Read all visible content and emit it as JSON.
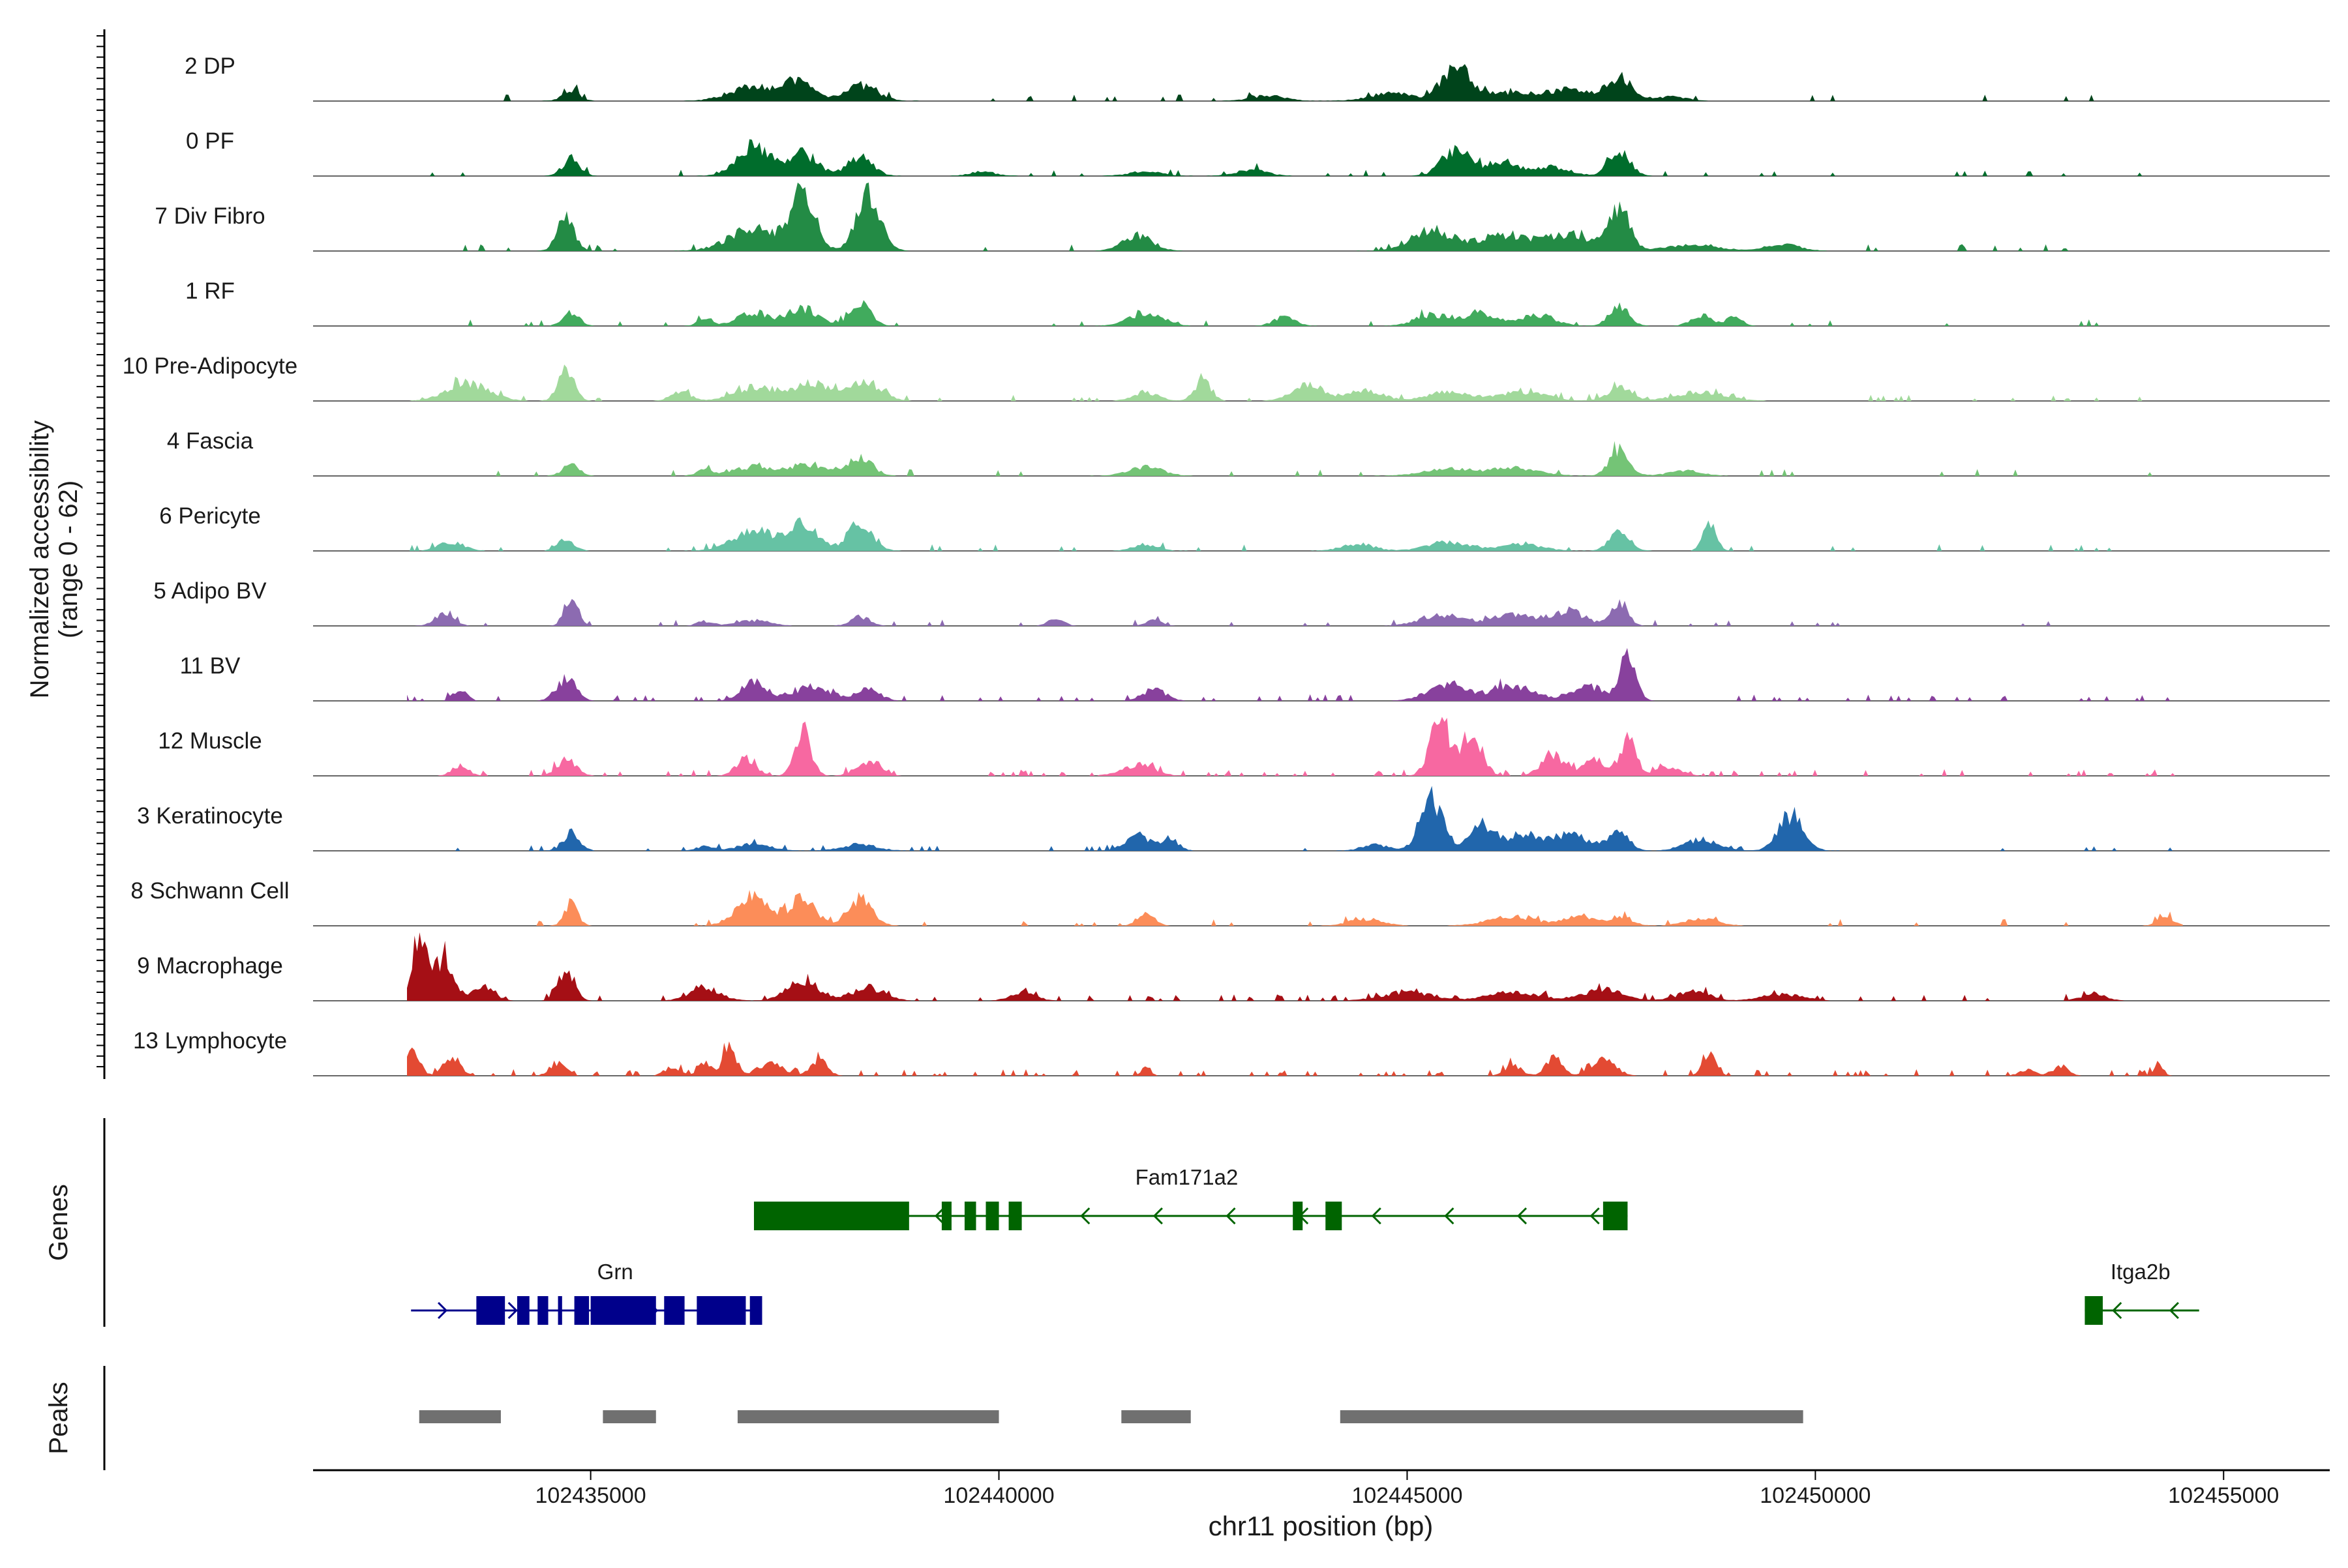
{
  "chart_data": {
    "type": "area",
    "title": "",
    "ylabel_line1": "Normalized accessibility",
    "ylabel_line2": "(range 0 - 62)",
    "xlabel": "chr11 position (bp)",
    "xlim": [
      102431600,
      102456300
    ],
    "ylim": [
      0,
      62
    ],
    "x_ticks": [
      {
        "value": 102435000,
        "label": "102435000"
      },
      {
        "value": 102440000,
        "label": "102440000"
      },
      {
        "value": 102445000,
        "label": "102445000"
      },
      {
        "value": 102450000,
        "label": "102450000"
      },
      {
        "value": 102455000,
        "label": "102455000"
      }
    ],
    "range": [
      102432750,
      102454500
    ],
    "series": [
      {
        "name": "2 DP",
        "color": "#00441B",
        "floor": 0.05,
        "noise": 0.04,
        "peaks": [
          [
            102434760,
            10,
            100
          ],
          [
            102437000,
            14,
            280
          ],
          [
            102437550,
            16,
            180
          ],
          [
            102438300,
            14,
            200
          ],
          [
            102443300,
            5,
            200
          ],
          [
            102444800,
            7,
            250
          ],
          [
            102445600,
            30,
            180
          ],
          [
            102446200,
            7,
            300
          ],
          [
            102447000,
            10,
            300
          ],
          [
            102447600,
            20,
            150
          ],
          [
            102448200,
            4,
            200
          ]
        ]
      },
      {
        "name": "0 PF",
        "color": "#006D2C",
        "floor": 0.05,
        "noise": 0.05,
        "peaks": [
          [
            102434760,
            16,
            100
          ],
          [
            102437000,
            28,
            200
          ],
          [
            102437600,
            20,
            180
          ],
          [
            102438300,
            18,
            150
          ],
          [
            102439800,
            4,
            150
          ],
          [
            102441800,
            4,
            200
          ],
          [
            102443100,
            6,
            180
          ],
          [
            102445600,
            24,
            170
          ],
          [
            102446200,
            12,
            200
          ],
          [
            102446800,
            8,
            200
          ],
          [
            102447600,
            22,
            130
          ]
        ]
      },
      {
        "name": "7 Div Fibro",
        "color": "#238B45",
        "floor": 0.05,
        "noise": 0.05,
        "peaks": [
          [
            102434700,
            30,
            100
          ],
          [
            102437000,
            20,
            300
          ],
          [
            102437600,
            50,
            150
          ],
          [
            102438400,
            48,
            150
          ],
          [
            102441700,
            14,
            180
          ],
          [
            102445300,
            18,
            250
          ],
          [
            102446200,
            14,
            350
          ],
          [
            102447000,
            14,
            250
          ],
          [
            102447600,
            36,
            130
          ],
          [
            102448500,
            6,
            300
          ],
          [
            102449600,
            6,
            200
          ]
        ]
      },
      {
        "name": "1 RF",
        "color": "#41AB5D",
        "floor": 0.04,
        "noise": 0.04,
        "peaks": [
          [
            102434760,
            12,
            100
          ],
          [
            102436400,
            8,
            80
          ],
          [
            102437000,
            12,
            200
          ],
          [
            102437600,
            16,
            180
          ],
          [
            102438300,
            20,
            130
          ],
          [
            102441800,
            12,
            200
          ],
          [
            102443500,
            8,
            130
          ],
          [
            102445300,
            10,
            200
          ],
          [
            102445900,
            12,
            200
          ],
          [
            102446600,
            10,
            200
          ],
          [
            102447600,
            18,
            120
          ],
          [
            102448600,
            10,
            120
          ],
          [
            102449000,
            8,
            100
          ]
        ]
      },
      {
        "name": "10 Pre-Adipocyte",
        "color": "#A1D99B",
        "floor": 0.03,
        "noise": 0.1,
        "peaks": [
          [
            102433500,
            16,
            250
          ],
          [
            102434700,
            26,
            100
          ],
          [
            102436100,
            8,
            120
          ],
          [
            102437000,
            12,
            250
          ],
          [
            102437700,
            16,
            250
          ],
          [
            102438400,
            16,
            180
          ],
          [
            102441800,
            8,
            150
          ],
          [
            102442500,
            18,
            100
          ],
          [
            102443800,
            14,
            200
          ],
          [
            102444500,
            10,
            200
          ],
          [
            102445500,
            8,
            250
          ],
          [
            102446400,
            8,
            300
          ],
          [
            102447600,
            12,
            150
          ],
          [
            102448600,
            8,
            300
          ]
        ]
      },
      {
        "name": "4 Fascia",
        "color": "#74C476",
        "floor": 0.05,
        "noise": 0.05,
        "peaks": [
          [
            102434760,
            10,
            100
          ],
          [
            102436400,
            5,
            100
          ],
          [
            102437000,
            8,
            250
          ],
          [
            102437700,
            10,
            250
          ],
          [
            102438300,
            16,
            150
          ],
          [
            102441800,
            8,
            200
          ],
          [
            102445500,
            6,
            300
          ],
          [
            102446300,
            7,
            300
          ],
          [
            102447600,
            24,
            120
          ],
          [
            102448400,
            5,
            200
          ]
        ]
      },
      {
        "name": "6 Pericyte",
        "color": "#66C2A4",
        "floor": 0.05,
        "noise": 0.05,
        "peaks": [
          [
            102433300,
            8,
            150
          ],
          [
            102434700,
            10,
            100
          ],
          [
            102437000,
            18,
            250
          ],
          [
            102437600,
            24,
            180
          ],
          [
            102438300,
            26,
            150
          ],
          [
            102441800,
            6,
            150
          ],
          [
            102444400,
            6,
            200
          ],
          [
            102445500,
            8,
            250
          ],
          [
            102446400,
            6,
            250
          ],
          [
            102447600,
            16,
            120
          ],
          [
            102448700,
            24,
            80
          ]
        ]
      },
      {
        "name": "5 Adipo BV",
        "color": "#8C6BB1",
        "floor": 0.03,
        "noise": 0.05,
        "peaks": [
          [
            102433200,
            10,
            120
          ],
          [
            102434760,
            28,
            80
          ],
          [
            102436400,
            4,
            100
          ],
          [
            102437000,
            5,
            200
          ],
          [
            102438300,
            8,
            120
          ],
          [
            102440700,
            6,
            100
          ],
          [
            102441900,
            5,
            100
          ],
          [
            102445400,
            10,
            250
          ],
          [
            102446300,
            10,
            300
          ],
          [
            102447000,
            12,
            200
          ],
          [
            102447600,
            22,
            100
          ]
        ]
      },
      {
        "name": "11 BV",
        "color": "#88419D",
        "floor": 0.01,
        "noise": 0.12,
        "peaks": [
          [
            102433400,
            12,
            80
          ],
          [
            102434700,
            20,
            120
          ],
          [
            102437000,
            18,
            150
          ],
          [
            102437700,
            12,
            250
          ],
          [
            102438400,
            10,
            150
          ],
          [
            102441900,
            10,
            150
          ],
          [
            102445500,
            14,
            250
          ],
          [
            102446300,
            14,
            250
          ],
          [
            102447200,
            14,
            200
          ],
          [
            102447700,
            36,
            100
          ]
        ]
      },
      {
        "name": "12 Muscle",
        "color": "#F768A1",
        "floor": 0.01,
        "noise": 0.12,
        "peaks": [
          [
            102433400,
            10,
            100
          ],
          [
            102434700,
            14,
            120
          ],
          [
            102436900,
            16,
            120
          ],
          [
            102437600,
            40,
            100
          ],
          [
            102438400,
            12,
            150
          ],
          [
            102441700,
            10,
            200
          ],
          [
            102445400,
            52,
            120
          ],
          [
            102445800,
            40,
            120
          ],
          [
            102446800,
            18,
            150
          ],
          [
            102447300,
            16,
            120
          ],
          [
            102447700,
            34,
            100
          ],
          [
            102448200,
            8,
            150
          ]
        ]
      },
      {
        "name": "3 Keratinocyte",
        "color": "#2166AC",
        "floor": 0.05,
        "noise": 0.05,
        "peaks": [
          [
            102434760,
            16,
            100
          ],
          [
            102436400,
            4,
            100
          ],
          [
            102437000,
            6,
            200
          ],
          [
            102438300,
            6,
            200
          ],
          [
            102441700,
            14,
            150
          ],
          [
            102442100,
            10,
            100
          ],
          [
            102444600,
            6,
            150
          ],
          [
            102445300,
            48,
            140
          ],
          [
            102445900,
            24,
            150
          ],
          [
            102446400,
            14,
            200
          ],
          [
            102447000,
            14,
            250
          ],
          [
            102447600,
            16,
            120
          ],
          [
            102448600,
            10,
            200
          ],
          [
            102449700,
            32,
            150
          ]
        ]
      },
      {
        "name": "8 Schwann Cell",
        "color": "#FC8D59",
        "floor": 0.04,
        "noise": 0.05,
        "peaks": [
          [
            102434760,
            20,
            80
          ],
          [
            102437000,
            30,
            200
          ],
          [
            102437600,
            26,
            150
          ],
          [
            102438300,
            24,
            150
          ],
          [
            102441800,
            12,
            100
          ],
          [
            102444500,
            6,
            200
          ],
          [
            102446300,
            8,
            300
          ],
          [
            102447100,
            10,
            150
          ],
          [
            102447600,
            8,
            150
          ],
          [
            102448600,
            6,
            200
          ],
          [
            102454300,
            8,
            100
          ]
        ]
      },
      {
        "name": "9 Macrophage",
        "color": "#A50F15",
        "floor": 0.01,
        "noise": 0.1,
        "peaks": [
          [
            102432900,
            58,
            80
          ],
          [
            102433200,
            40,
            120
          ],
          [
            102433700,
            14,
            120
          ],
          [
            102434700,
            30,
            100
          ],
          [
            102436400,
            10,
            200
          ],
          [
            102437600,
            18,
            200
          ],
          [
            102438400,
            12,
            200
          ],
          [
            102440300,
            8,
            150
          ],
          [
            102445000,
            8,
            300
          ],
          [
            102446300,
            8,
            300
          ],
          [
            102447400,
            10,
            250
          ],
          [
            102448500,
            8,
            200
          ],
          [
            102449600,
            6,
            250
          ],
          [
            102453400,
            6,
            150
          ]
        ]
      },
      {
        "name": "13 Lymphocyte",
        "color": "#E34A33",
        "floor": 0.0,
        "noise": 0.12,
        "peaks": [
          [
            102432800,
            20,
            100
          ],
          [
            102433300,
            18,
            100
          ],
          [
            102434600,
            12,
            100
          ],
          [
            102436000,
            8,
            100
          ],
          [
            102436400,
            14,
            80
          ],
          [
            102436700,
            28,
            80
          ],
          [
            102437200,
            12,
            150
          ],
          [
            102437800,
            14,
            100
          ],
          [
            102441800,
            8,
            60
          ],
          [
            102446300,
            10,
            100
          ],
          [
            102446800,
            16,
            100
          ],
          [
            102447400,
            14,
            150
          ],
          [
            102448700,
            20,
            80
          ],
          [
            102452600,
            6,
            100
          ],
          [
            102453000,
            8,
            100
          ],
          [
            102454200,
            10,
            60
          ]
        ]
      }
    ],
    "genes_label": "Genes",
    "genes": [
      {
        "name": "Fam171a2",
        "strand": "-",
        "color": "#006400",
        "row": 0,
        "start": 102437000,
        "end": 102447700,
        "exons": [
          [
            102437000,
            102438900
          ],
          [
            102439300,
            102439420
          ],
          [
            102439580,
            102439720
          ],
          [
            102439840,
            102440000
          ],
          [
            102440120,
            102440280
          ],
          [
            102443600,
            102443720
          ],
          [
            102444000,
            102444200
          ],
          [
            102447400,
            102447700
          ]
        ]
      },
      {
        "name": "Grn",
        "strand": "+",
        "color": "#00008B",
        "row": 1,
        "start": 102432800,
        "end": 102437100,
        "exons": [
          [
            102433600,
            102433950
          ],
          [
            102434100,
            102434250
          ],
          [
            102434350,
            102434480
          ],
          [
            102434600,
            102434650
          ],
          [
            102434800,
            102434980
          ],
          [
            102435000,
            102435800
          ],
          [
            102435900,
            102436150
          ],
          [
            102436300,
            102436900
          ],
          [
            102436950,
            102437100
          ]
        ]
      },
      {
        "name": "Itga2b",
        "strand": "-",
        "color": "#006400",
        "row": 1,
        "start": 102453300,
        "end": 102454700,
        "exons": [
          [
            102453300,
            102453520
          ]
        ]
      }
    ],
    "peaks_label": "Peaks",
    "peaks": [
      [
        102432900,
        102433900
      ],
      [
        102435150,
        102435800
      ],
      [
        102436800,
        102440000
      ],
      [
        102441500,
        102442350
      ],
      [
        102444180,
        102449850
      ]
    ]
  }
}
